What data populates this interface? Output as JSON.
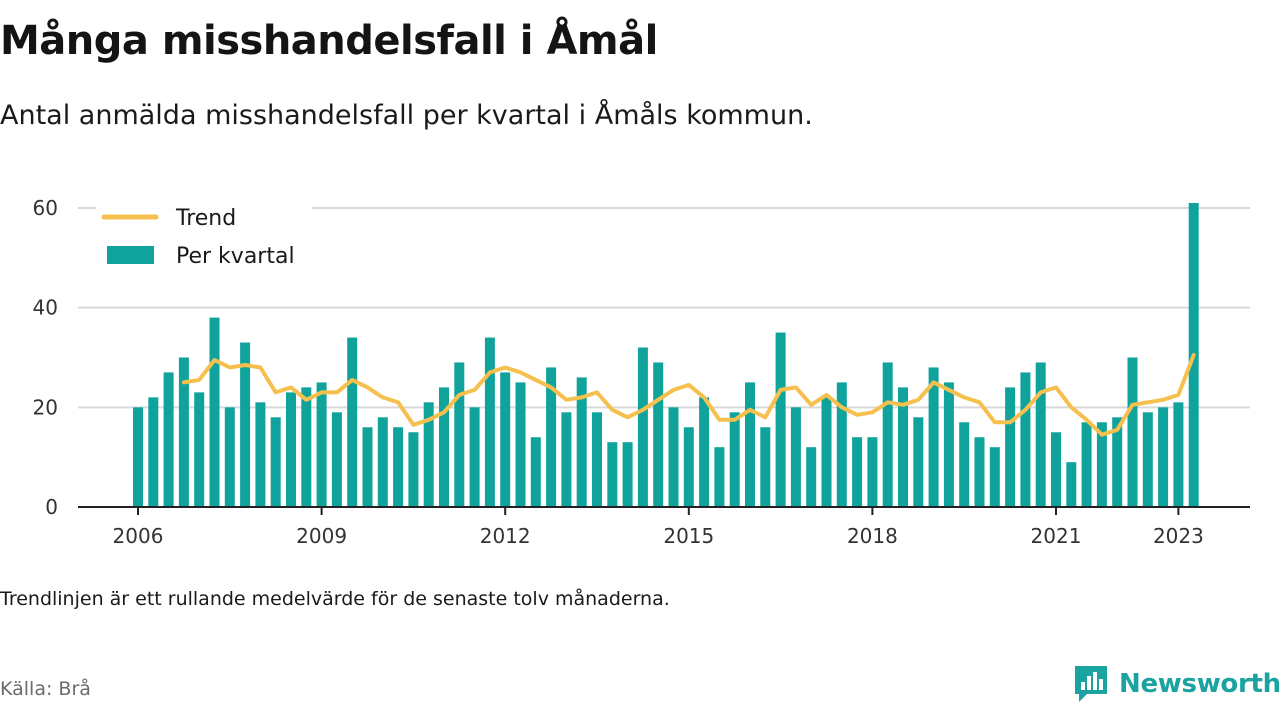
{
  "header": {
    "title": "Många misshandelsfall i Åmål",
    "subtitle": "Antal anmälda misshandelsfall per kvartal i Åmåls kommun."
  },
  "footer": {
    "note": "Trendlinjen är ett rullande medelvärde för de senaste tolv månaderna.",
    "source": "Källa: Brå",
    "brand": "Newsworthy",
    "brand_icon": "bar-chart-logo-icon"
  },
  "colors": {
    "bars": "#0fa39b",
    "trend": "#f5c04e",
    "grid": "#d9d9d9",
    "axis": "#222222",
    "brand": "#1aa3a0"
  },
  "chart_data": {
    "type": "bar",
    "title": "",
    "xlabel": "",
    "ylabel": "",
    "ylim": [
      0,
      62
    ],
    "yticks": [
      0,
      20,
      40,
      60
    ],
    "x_start": "2006 Q1",
    "xtick_labels": [
      "2006",
      "2009",
      "2012",
      "2015",
      "2018",
      "2021",
      "2023"
    ],
    "grid": true,
    "legend_position": "top-left",
    "series": [
      {
        "name": "Per kvartal",
        "type": "bar",
        "values": [
          20,
          22,
          27,
          30,
          23,
          38,
          20,
          33,
          21,
          18,
          23,
          24,
          25,
          19,
          34,
          16,
          18,
          16,
          15,
          21,
          24,
          29,
          20,
          34,
          27,
          25,
          14,
          28,
          19,
          26,
          19,
          13,
          13,
          32,
          29,
          20,
          16,
          22,
          12,
          19,
          25,
          16,
          35,
          20,
          12,
          22,
          25,
          14,
          14,
          29,
          24,
          18,
          28,
          25,
          17,
          14,
          12,
          24,
          27,
          29,
          15,
          9,
          17,
          17,
          18,
          30,
          19,
          20,
          21,
          61
        ]
      },
      {
        "name": "Trend",
        "type": "line",
        "values": [
          null,
          null,
          null,
          25,
          25.5,
          29.5,
          28,
          28.5,
          28,
          23,
          24,
          21.5,
          23,
          23,
          25.5,
          24,
          22,
          21,
          16.5,
          17.5,
          19,
          22.5,
          23.5,
          27,
          28,
          27,
          25.5,
          24,
          21.5,
          22,
          23,
          19.5,
          18,
          19.5,
          21.5,
          23.5,
          24.5,
          22,
          17.5,
          17.5,
          19.5,
          18,
          23.5,
          24,
          20.5,
          22.5,
          20,
          18.5,
          19,
          21,
          20.5,
          21.5,
          25,
          23.5,
          22,
          21,
          17,
          17,
          19.5,
          23,
          24,
          20,
          17.5,
          14.5,
          15.5,
          20.5,
          21,
          21.5,
          22.5,
          30.5
        ]
      }
    ]
  }
}
